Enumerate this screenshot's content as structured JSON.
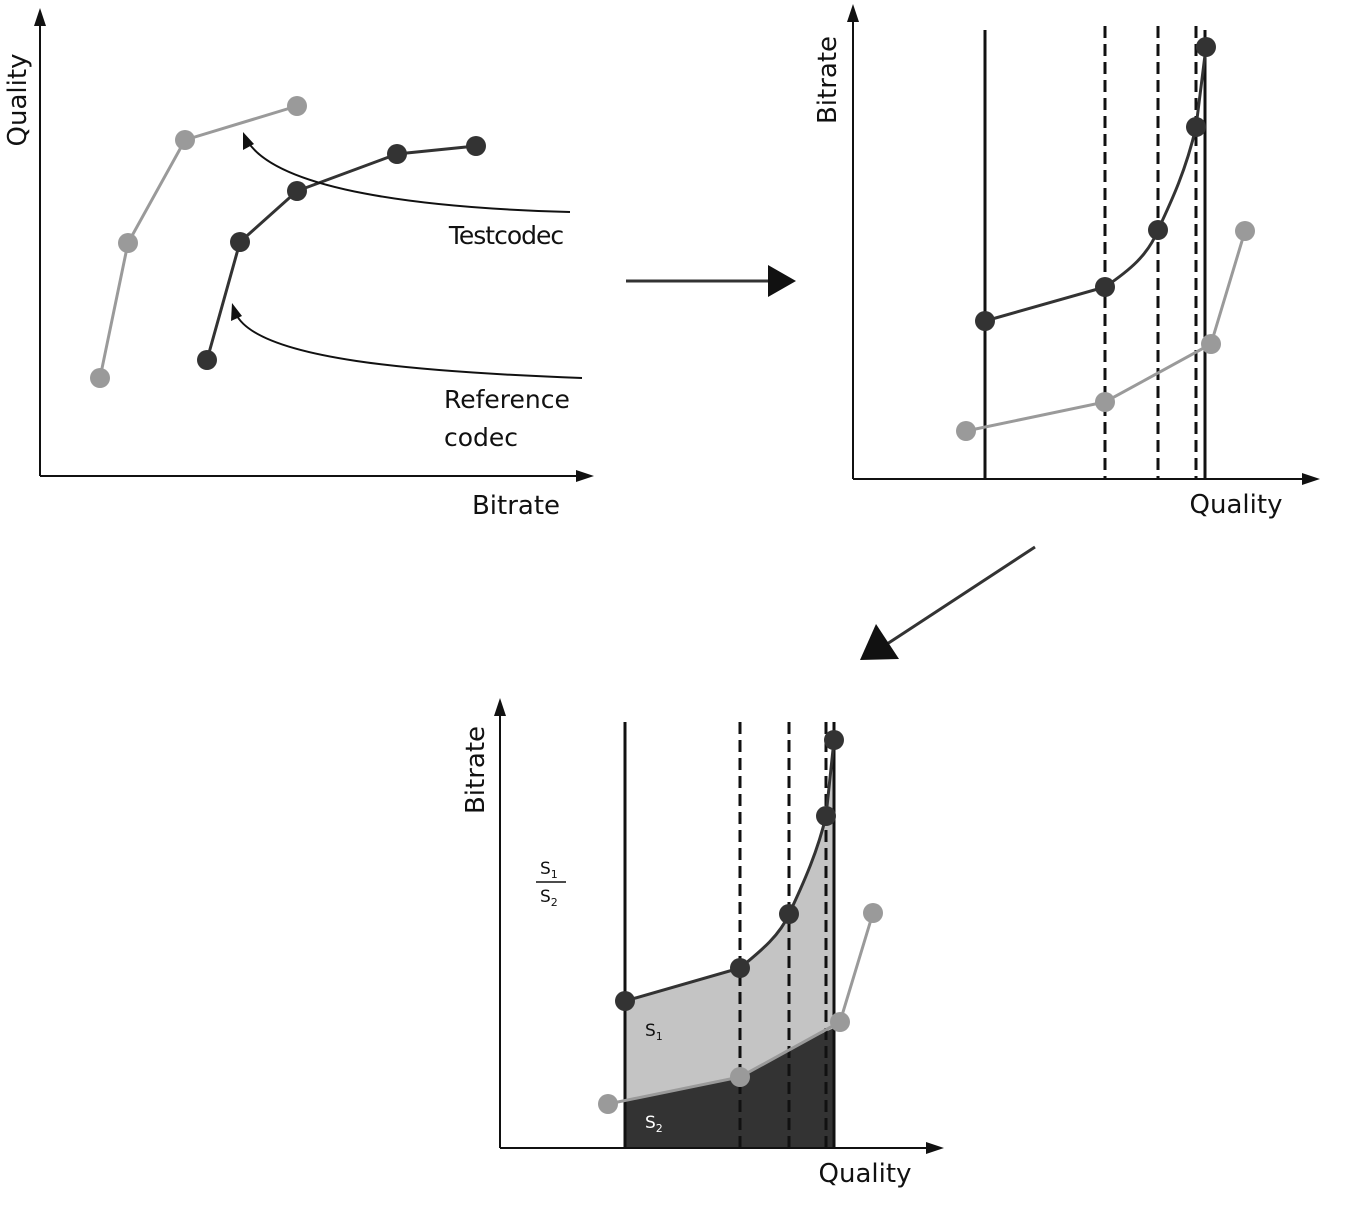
{
  "panel1": {
    "y_axis_label": "Quality",
    "x_axis_label": "Bitrate",
    "test_codec_label": "Testcodec",
    "reference_codec_label_line1": "Reference",
    "reference_codec_label_line2": "codec"
  },
  "panel2": {
    "y_axis_label": "Bitrate",
    "x_axis_label": "Quality"
  },
  "panel3": {
    "y_axis_label": "Bitrate",
    "x_axis_label": "Quality",
    "ratio_numerator": "S",
    "ratio_numerator_sub": "1",
    "ratio_denominator": "S",
    "ratio_denominator_sub": "2",
    "area1_label": "S",
    "area1_sub": "1",
    "area2_label": "S",
    "area2_sub": "2"
  },
  "colors": {
    "dark_series": "#333333",
    "light_series": "#9a9a9a",
    "area_s1": "#c4c4c4",
    "area_s2": "#333333"
  }
}
